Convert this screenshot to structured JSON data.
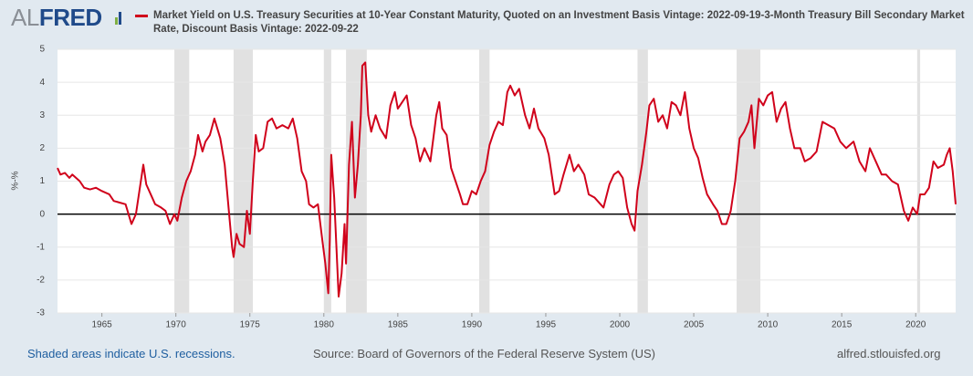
{
  "chart_data": {
    "type": "line",
    "logo_prefix": "AL",
    "logo": "FRED",
    "title": "Market Yield on U.S. Treasury Securities at 10-Year Constant Maturity, Quoted on an Investment Basis Vintage: 2022-09-19-3-Month Treasury Bill Secondary Market Rate, Discount Basis Vintage: 2022-09-22",
    "ylabel": "%-%",
    "footer_left": "Shaded areas indicate U.S. recessions.",
    "footer_center": "Source: Board of Governors of the Federal Reserve System (US)",
    "footer_right": "alfred.stlouisfed.org",
    "xlim": [
      1962,
      2022.7
    ],
    "xticks": [
      1965,
      1970,
      1975,
      1980,
      1985,
      1990,
      1995,
      2000,
      2005,
      2010,
      2015,
      2020
    ],
    "ylim": [
      -3,
      5
    ],
    "yticks": [
      -3,
      -2,
      -1,
      0,
      1,
      2,
      3,
      4,
      5
    ],
    "grid": true,
    "reference_line": 0,
    "recessions": [
      [
        1969.9,
        1970.9
      ],
      [
        1973.9,
        1975.2
      ],
      [
        1980.0,
        1980.5
      ],
      [
        1981.5,
        1982.9
      ],
      [
        1990.5,
        1991.2
      ],
      [
        2001.2,
        2001.9
      ],
      [
        2007.9,
        2009.5
      ],
      [
        2020.1,
        2020.3
      ]
    ],
    "series": [
      {
        "color": "#d0021b",
        "x": [
          1962.0,
          1962.2,
          1962.5,
          1962.8,
          1963.0,
          1963.5,
          1963.8,
          1964.2,
          1964.6,
          1965.0,
          1965.5,
          1965.8,
          1966.2,
          1966.6,
          1966.8,
          1967.0,
          1967.3,
          1967.6,
          1967.8,
          1968.0,
          1968.3,
          1968.6,
          1969.0,
          1969.3,
          1969.6,
          1969.9,
          1970.1,
          1970.4,
          1970.7,
          1971.0,
          1971.3,
          1971.5,
          1971.8,
          1972.0,
          1972.3,
          1972.6,
          1972.8,
          1973.0,
          1973.3,
          1973.6,
          1973.8,
          1973.9,
          1974.1,
          1974.3,
          1974.6,
          1974.8,
          1975.0,
          1975.2,
          1975.4,
          1975.6,
          1975.9,
          1976.2,
          1976.5,
          1976.8,
          1977.2,
          1977.6,
          1977.9,
          1978.2,
          1978.5,
          1978.8,
          1979.0,
          1979.3,
          1979.6,
          1979.9,
          1980.1,
          1980.3,
          1980.4,
          1980.5,
          1980.7,
          1980.9,
          1981.0,
          1981.2,
          1981.4,
          1981.5,
          1981.7,
          1981.9,
          1982.1,
          1982.3,
          1982.5,
          1982.6,
          1982.8,
          1983.0,
          1983.2,
          1983.5,
          1983.8,
          1984.2,
          1984.5,
          1984.8,
          1985.0,
          1985.3,
          1985.6,
          1985.9,
          1986.2,
          1986.5,
          1986.8,
          1987.2,
          1987.6,
          1987.8,
          1988.0,
          1988.3,
          1988.6,
          1988.9,
          1989.2,
          1989.4,
          1989.7,
          1990.0,
          1990.3,
          1990.6,
          1990.9,
          1991.2,
          1991.5,
          1991.8,
          1992.1,
          1992.4,
          1992.6,
          1992.9,
          1993.2,
          1993.6,
          1993.9,
          1994.2,
          1994.5,
          1994.9,
          1995.2,
          1995.6,
          1995.9,
          1996.2,
          1996.6,
          1996.9,
          1997.2,
          1997.6,
          1997.9,
          1998.3,
          1998.7,
          1998.9,
          1999.3,
          1999.6,
          1999.9,
          2000.2,
          2000.5,
          2000.8,
          2001.0,
          2001.2,
          2001.5,
          2001.8,
          2002.0,
          2002.3,
          2002.6,
          2002.9,
          2003.2,
          2003.5,
          2003.8,
          2004.1,
          2004.4,
          2004.7,
          2005.0,
          2005.3,
          2005.6,
          2005.9,
          2006.3,
          2006.6,
          2006.9,
          2007.2,
          2007.5,
          2007.8,
          2008.1,
          2008.4,
          2008.7,
          2008.9,
          2009.1,
          2009.4,
          2009.7,
          2010.0,
          2010.3,
          2010.6,
          2010.9,
          2011.2,
          2011.5,
          2011.8,
          2012.2,
          2012.5,
          2012.9,
          2013.3,
          2013.7,
          2014.1,
          2014.5,
          2014.9,
          2015.3,
          2015.8,
          2016.2,
          2016.6,
          2016.9,
          2017.3,
          2017.7,
          2018.0,
          2018.4,
          2018.8,
          2019.2,
          2019.5,
          2019.8,
          2020.1,
          2020.3,
          2020.6,
          2020.9,
          2021.2,
          2021.5,
          2021.9,
          2022.1,
          2022.3,
          2022.5,
          2022.7
        ],
        "values": [
          1.4,
          1.2,
          1.25,
          1.1,
          1.2,
          1.0,
          0.8,
          0.75,
          0.8,
          0.7,
          0.6,
          0.4,
          0.35,
          0.3,
          0.0,
          -0.3,
          0.0,
          0.9,
          1.5,
          0.9,
          0.6,
          0.3,
          0.2,
          0.1,
          -0.3,
          0.0,
          -0.2,
          0.5,
          1.0,
          1.3,
          1.8,
          2.4,
          1.9,
          2.2,
          2.4,
          2.9,
          2.6,
          2.3,
          1.5,
          0.0,
          -1.0,
          -1.3,
          -0.6,
          -0.9,
          -1.0,
          0.1,
          -0.6,
          1.0,
          2.4,
          1.9,
          2.0,
          2.8,
          2.9,
          2.6,
          2.7,
          2.6,
          2.9,
          2.3,
          1.3,
          1.0,
          0.3,
          0.2,
          0.3,
          -0.8,
          -1.5,
          -2.4,
          -0.8,
          1.8,
          0.5,
          -1.5,
          -2.5,
          -1.8,
          -0.3,
          -1.5,
          1.5,
          2.8,
          0.5,
          1.5,
          3.0,
          4.5,
          4.6,
          3.0,
          2.5,
          3.0,
          2.6,
          2.3,
          3.3,
          3.7,
          3.2,
          3.4,
          3.6,
          2.7,
          2.3,
          1.6,
          2.0,
          1.6,
          3.0,
          3.4,
          2.6,
          2.4,
          1.4,
          1.0,
          0.6,
          0.3,
          0.3,
          0.7,
          0.6,
          1.0,
          1.3,
          2.1,
          2.5,
          2.8,
          2.7,
          3.7,
          3.9,
          3.6,
          3.8,
          3.0,
          2.6,
          3.2,
          2.6,
          2.3,
          1.8,
          0.6,
          0.7,
          1.2,
          1.8,
          1.3,
          1.5,
          1.2,
          0.6,
          0.5,
          0.3,
          0.2,
          0.9,
          1.2,
          1.3,
          1.1,
          0.2,
          -0.3,
          -0.5,
          0.7,
          1.5,
          2.5,
          3.3,
          3.5,
          2.8,
          3.0,
          2.6,
          3.4,
          3.3,
          3.0,
          3.7,
          2.6,
          2.0,
          1.7,
          1.1,
          0.6,
          0.3,
          0.1,
          -0.3,
          -0.3,
          0.1,
          1.0,
          2.3,
          2.5,
          2.8,
          3.3,
          2.0,
          3.5,
          3.3,
          3.6,
          3.7,
          2.8,
          3.2,
          3.4,
          2.6,
          2.0,
          2.0,
          1.6,
          1.7,
          1.9,
          2.8,
          2.7,
          2.6,
          2.2,
          2.0,
          2.2,
          1.6,
          1.3,
          2.0,
          1.6,
          1.2,
          1.2,
          1.0,
          0.9,
          0.1,
          -0.2,
          0.2,
          0.0,
          0.6,
          0.6,
          0.8,
          1.6,
          1.4,
          1.5,
          1.8,
          2.0,
          1.3,
          0.3
        ]
      }
    ]
  }
}
